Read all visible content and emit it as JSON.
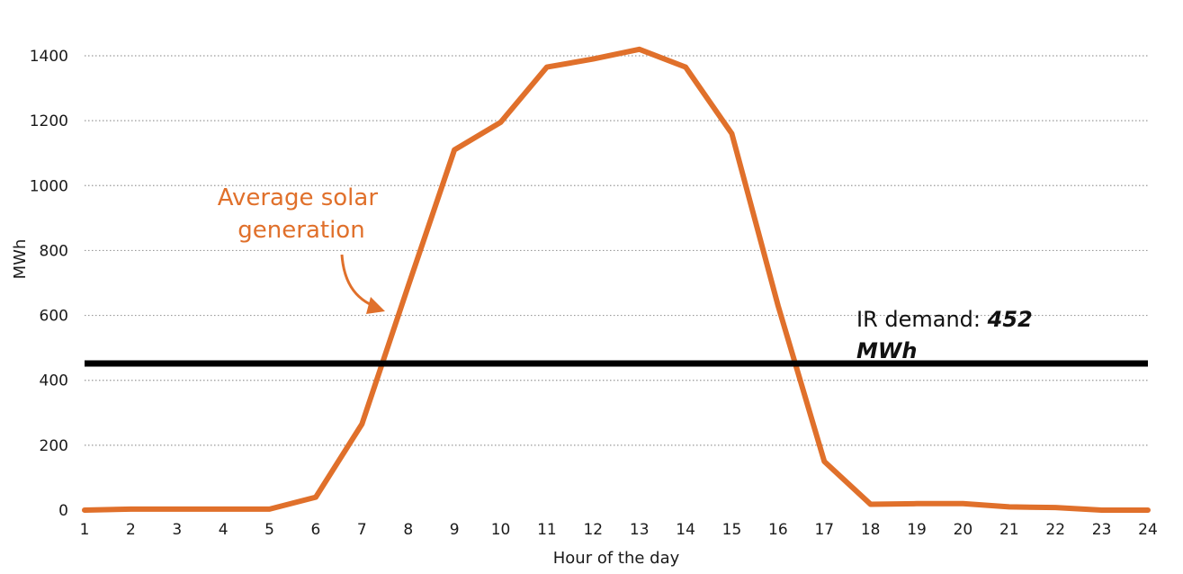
{
  "chart_data": {
    "type": "line",
    "xlabel": "Hour of the day",
    "ylabel": "MWh",
    "x": [
      1,
      2,
      3,
      4,
      5,
      6,
      7,
      8,
      9,
      10,
      11,
      12,
      13,
      14,
      15,
      16,
      17,
      18,
      19,
      20,
      21,
      22,
      23,
      24
    ],
    "ylim": [
      0,
      1400
    ],
    "yticks": [
      0,
      200,
      400,
      600,
      800,
      1000,
      1200,
      1400
    ],
    "grid": "horizontal-dotted",
    "series": [
      {
        "name": "Average solar generation",
        "color": "#E0702B",
        "values": [
          0,
          3,
          3,
          3,
          3,
          40,
          265,
          690,
          1110,
          1195,
          1365,
          1390,
          1420,
          1365,
          1160,
          630,
          150,
          18,
          20,
          20,
          10,
          8,
          0,
          0
        ]
      }
    ],
    "reference_line": {
      "value": 452,
      "color": "#000000",
      "label_prefix": "IR demand: ",
      "label_value_line1": "452",
      "label_value_line2": "MWh"
    }
  }
}
